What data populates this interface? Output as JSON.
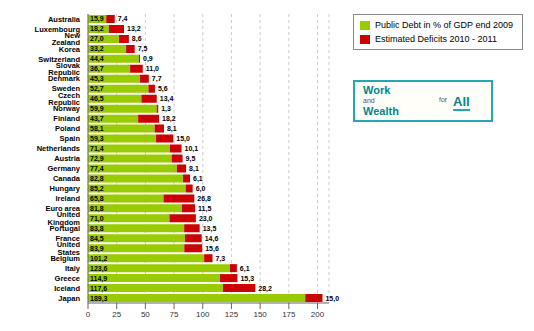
{
  "chart_data": {
    "type": "bar",
    "orientation": "horizontal",
    "stacked": true,
    "data_labels": true,
    "grid": true,
    "legend": "upper right",
    "categories": [
      "Japan",
      "Iceland",
      "Greece",
      "Italy",
      "Belgium",
      "United States",
      "France",
      "Portugal",
      "United Kingdom",
      "Euro area",
      "Ireland",
      "Hungary",
      "Canada",
      "Germany",
      "Austria",
      "Netherlands",
      "Spain",
      "Poland",
      "Finland",
      "Norway",
      "Czech Republic",
      "Sweden",
      "Denmark",
      "Slovak Republic",
      "Switzerland",
      "Korea",
      "New Zealand",
      "Luxembourg",
      "Australia"
    ],
    "series": [
      {
        "name": "Public Debt in % of GDP end 2009",
        "color": "#99CC00",
        "values": [
          189.3,
          117.6,
          114.9,
          123.6,
          101.2,
          83.9,
          84.5,
          83.8,
          71.0,
          81.8,
          65.8,
          85.2,
          82.8,
          77.4,
          72.9,
          71.4,
          59.3,
          58.1,
          43.7,
          59.9,
          46.5,
          52.7,
          45.3,
          36.7,
          44.4,
          33.2,
          27.0,
          18.2,
          15.9
        ],
        "value_labels": [
          "189,3",
          "117,6",
          "114,9",
          "123,6",
          "101,2",
          "83,9",
          "84,5",
          "83,8",
          "71,0",
          "81,8",
          "65,8",
          "85,2",
          "82,8",
          "77,4",
          "72,9",
          "71,4",
          "59,3",
          "58,1",
          "43,7",
          "59,9",
          "46,5",
          "52,7",
          "45,3",
          "36,7",
          "44,4",
          "33,2",
          "27,0",
          "18,2",
          "15,9"
        ]
      },
      {
        "name": "Estimated Deficits 2010 - 2011",
        "color": "#CC0000",
        "values": [
          15.0,
          28.2,
          15.3,
          6.1,
          7.3,
          15.6,
          14.6,
          13.5,
          23.0,
          11.5,
          26.8,
          6.0,
          6.1,
          8.1,
          9.5,
          10.1,
          15.0,
          8.1,
          18.2,
          1.3,
          13.4,
          5.6,
          7.7,
          11.0,
          0.9,
          7.5,
          8.6,
          13.2,
          7.4
        ],
        "value_labels": [
          "15,0",
          "28,2",
          "15,3",
          "6,1",
          "7,3",
          "15,6",
          "14,6",
          "13,5",
          "23,0",
          "11,5",
          "26,8",
          "6,0",
          "6,1",
          "8,1",
          "9,5",
          "10,1",
          "15,0",
          "8,1",
          "18,2",
          "1,3",
          "13,4",
          "5,6",
          "7,7",
          "11,0",
          "0,9",
          "7,5",
          "8,6",
          "13,2",
          "7,4"
        ]
      }
    ],
    "xlim": [
      0,
      210
    ],
    "xticks": [
      0,
      25,
      50,
      75,
      100,
      125,
      150,
      175,
      200
    ],
    "annotations": [
      "Work",
      "and",
      "Wealth",
      "for",
      "All"
    ]
  }
}
